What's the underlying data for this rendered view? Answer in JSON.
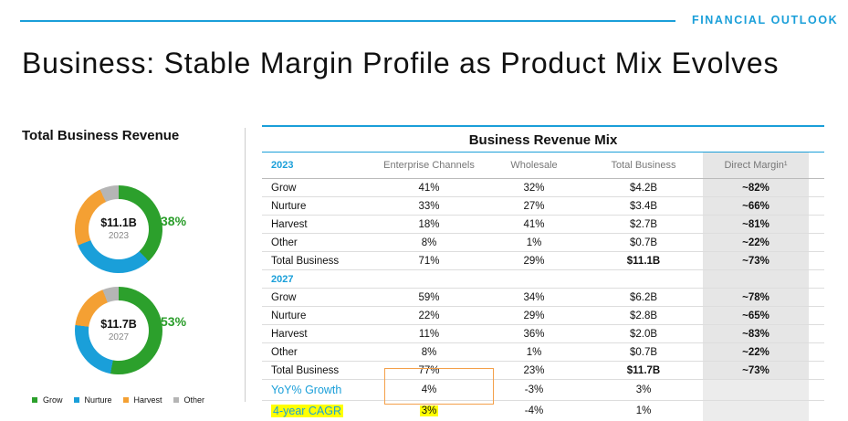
{
  "header": {
    "section_tag": "FINANCIAL OUTLOOK",
    "title": "Business: Stable Margin Profile as Product Mix Evolves"
  },
  "left_panel": {
    "title": "Total Business Revenue",
    "donuts": [
      {
        "value": "$11.1B",
        "year": "2023",
        "growth": "38%",
        "segments_pct": {
          "grow": 38,
          "nurture": 31,
          "harvest": 24,
          "other": 7
        }
      },
      {
        "value": "$11.7B",
        "year": "2027",
        "growth": "53%",
        "segments_pct": {
          "grow": 53,
          "nurture": 24,
          "harvest": 17,
          "other": 6
        }
      }
    ],
    "legend": [
      "Grow",
      "Nurture",
      "Harvest",
      "Other"
    ],
    "colors": {
      "grow": "#2ca02c",
      "nurture": "#1a9fd9",
      "harvest": "#f4a033",
      "other": "#b5b5b5"
    }
  },
  "table": {
    "title": "Business Revenue Mix",
    "columns": [
      "Enterprise Channels",
      "Wholesale",
      "Total Business",
      "Direct Margin¹"
    ],
    "sections": [
      {
        "year": "2023",
        "rows": [
          [
            "Grow",
            "41%",
            "32%",
            "$4.2B",
            "~82%"
          ],
          [
            "Nurture",
            "33%",
            "27%",
            "$3.4B",
            "~66%"
          ],
          [
            "Harvest",
            "18%",
            "41%",
            "$2.7B",
            "~81%"
          ],
          [
            "Other",
            "8%",
            "1%",
            "$0.7B",
            "~22%"
          ],
          [
            "Total Business",
            "71%",
            "29%",
            "$11.1B",
            "~73%"
          ]
        ]
      },
      {
        "year": "2027",
        "rows": [
          [
            "Grow",
            "59%",
            "34%",
            "$6.2B",
            "~78%"
          ],
          [
            "Nurture",
            "22%",
            "29%",
            "$2.8B",
            "~65%"
          ],
          [
            "Harvest",
            "11%",
            "36%",
            "$2.0B",
            "~83%"
          ],
          [
            "Other",
            "8%",
            "1%",
            "$0.7B",
            "~22%"
          ],
          [
            "Total Business",
            "77%",
            "23%",
            "$11.7B",
            "~73%"
          ]
        ]
      }
    ],
    "summary": [
      [
        "YoY% Growth",
        "4%",
        "-3%",
        "3%"
      ],
      [
        "4-year CAGR",
        "3%",
        "-4%",
        "1%"
      ]
    ]
  }
}
